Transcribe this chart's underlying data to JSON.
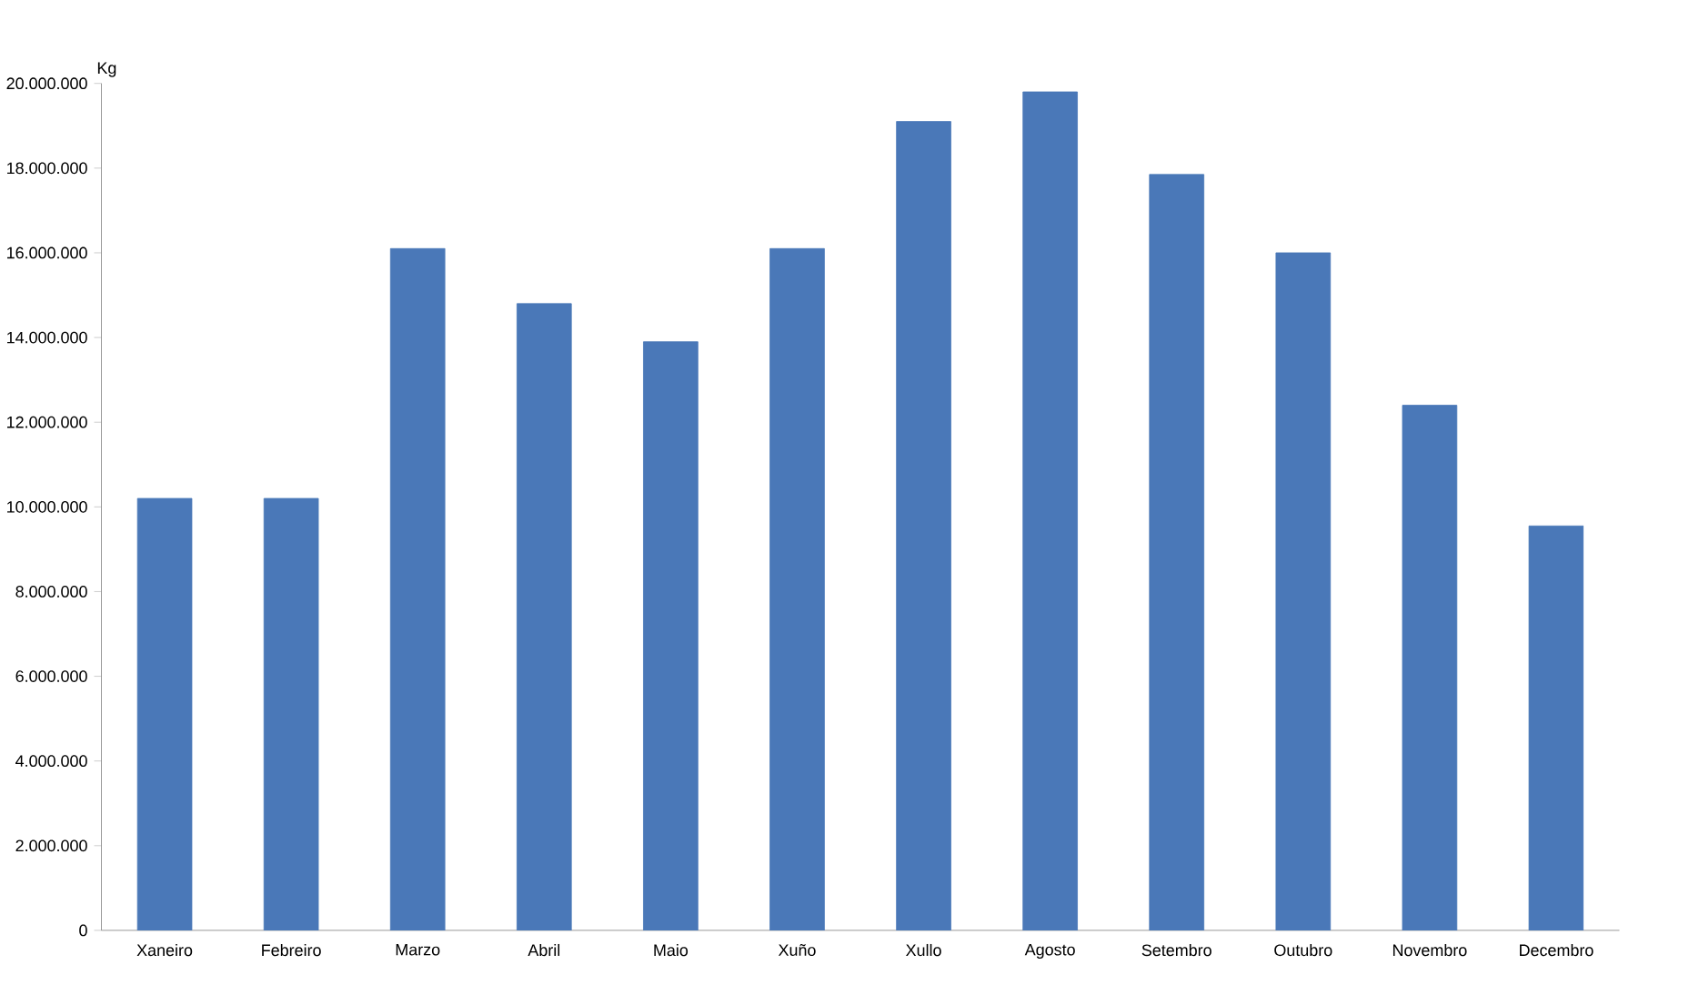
{
  "chart_data": {
    "type": "bar",
    "ylabel": "Kg",
    "categories": [
      "Xaneiro",
      "Febreiro",
      "Marzo",
      "Abril",
      "Maio",
      "Xuño",
      "Xullo",
      "Agosto",
      "Setembro",
      "Outubro",
      "Novembro",
      "Decembro"
    ],
    "values": [
      10200000,
      10200000,
      16100000,
      14800000,
      13900000,
      16100000,
      19100000,
      19800000,
      17850000,
      16000000,
      12400000,
      9550000
    ],
    "color": "#4a78b8",
    "ylim": [
      0,
      20000000
    ],
    "yticks": [
      {
        "value": 0,
        "label": "0"
      },
      {
        "value": 2000000,
        "label": "2.000.000"
      },
      {
        "value": 4000000,
        "label": "4.000.000"
      },
      {
        "value": 6000000,
        "label": "6.000.000"
      },
      {
        "value": 8000000,
        "label": "8.000.000"
      },
      {
        "value": 10000000,
        "label": "10.000.000"
      },
      {
        "value": 12000000,
        "label": "12.000.000"
      },
      {
        "value": 14000000,
        "label": "14.000.000"
      },
      {
        "value": 16000000,
        "label": "16.000.000"
      },
      {
        "value": 18000000,
        "label": "18.000.000"
      },
      {
        "value": 20000000,
        "label": "20.000.000"
      }
    ],
    "grid": false
  }
}
